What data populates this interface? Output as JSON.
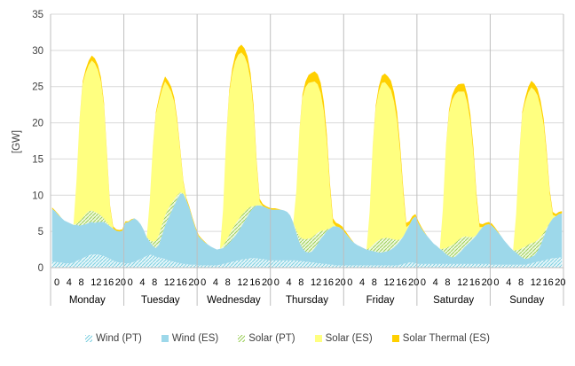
{
  "chart_data": {
    "type": "area",
    "stacked": true,
    "ylabel": "[GW]",
    "ylim": [
      0,
      35
    ],
    "yticks": [
      0,
      5,
      10,
      15,
      20,
      25,
      30,
      35
    ],
    "hour_ticks": [
      "0",
      "4",
      "8",
      "12",
      "16",
      "20"
    ],
    "hours_per_day": 24,
    "days": [
      "Monday",
      "Tuesday",
      "Wednesday",
      "Thursday",
      "Friday",
      "Saturday",
      "Sunday"
    ],
    "grid": true,
    "legend_position": "bottom",
    "series": [
      {
        "name": "Wind (PT)",
        "color": "#b5e3ec",
        "pattern": "hatch",
        "values": [
          [
            0.8,
            0.8,
            0.7,
            0.7,
            0.6,
            0.6,
            0.6,
            0.7,
            0.9,
            1.1,
            1.3,
            1.5,
            1.7,
            1.8,
            1.8,
            1.8,
            1.7,
            1.6,
            1.4,
            1.2,
            1.0,
            0.8,
            0.7,
            0.7
          ],
          [
            0.6,
            0.6,
            0.7,
            0.8,
            1.0,
            1.2,
            1.4,
            1.6,
            1.8,
            1.7,
            1.5,
            1.4,
            1.3,
            1.2,
            1.0,
            0.9,
            0.8,
            0.7,
            0.6,
            0.5,
            0.5,
            0.4,
            0.4,
            0.4
          ],
          [
            0.3,
            0.3,
            0.3,
            0.3,
            0.3,
            0.3,
            0.3,
            0.4,
            0.5,
            0.6,
            0.7,
            0.8,
            0.9,
            1.0,
            1.1,
            1.2,
            1.2,
            1.3,
            1.3,
            1.3,
            1.2,
            1.2,
            1.1,
            1.0
          ],
          [
            1.0,
            1.0,
            1.0,
            1.0,
            1.0,
            1.0,
            1.0,
            1.0,
            1.0,
            0.9,
            0.9,
            0.8,
            0.8,
            0.7,
            0.7,
            0.6,
            0.6,
            0.5,
            0.5,
            0.4,
            0.4,
            0.3,
            0.3,
            0.3
          ],
          [
            0.3,
            0.3,
            0.3,
            0.3,
            0.3,
            0.3,
            0.3,
            0.3,
            0.3,
            0.3,
            0.3,
            0.3,
            0.3,
            0.3,
            0.3,
            0.3,
            0.3,
            0.3,
            0.4,
            0.5,
            0.6,
            0.7,
            0.7,
            0.6
          ],
          [
            0.5,
            0.5,
            0.5,
            0.5,
            0.5,
            0.5,
            0.5,
            0.5,
            0.5,
            0.5,
            0.5,
            0.5,
            0.5,
            0.5,
            0.5,
            0.5,
            0.5,
            0.5,
            0.5,
            0.5,
            0.5,
            0.5,
            0.5,
            0.5
          ],
          [
            0.4,
            0.4,
            0.4,
            0.4,
            0.4,
            0.4,
            0.4,
            0.4,
            0.4,
            0.4,
            0.4,
            0.4,
            0.5,
            0.6,
            0.7,
            0.8,
            0.9,
            1.0,
            1.1,
            1.2,
            1.3,
            1.3,
            1.4,
            1.4
          ]
        ]
      },
      {
        "name": "Wind (ES)",
        "color": "#9dd8ea",
        "values": [
          [
            7.3,
            7.0,
            6.6,
            6.2,
            5.9,
            5.7,
            5.5,
            5.2,
            5.0,
            4.7,
            4.6,
            4.5,
            4.5,
            4.5,
            4.4,
            4.5,
            4.6,
            4.7,
            4.6,
            4.5,
            4.4,
            4.3,
            4.3,
            4.4
          ],
          [
            5.6,
            5.7,
            5.9,
            6.0,
            5.5,
            4.8,
            3.8,
            2.6,
            1.8,
            1.3,
            1.2,
            1.8,
            3.2,
            4.6,
            5.8,
            6.8,
            7.8,
            8.8,
            9.6,
            9.7,
            8.8,
            7.8,
            6.3,
            5.0
          ],
          [
            4.0,
            3.6,
            3.2,
            2.9,
            2.6,
            2.4,
            2.2,
            2.2,
            2.2,
            2.4,
            2.7,
            3.1,
            3.5,
            4.0,
            4.6,
            5.2,
            5.9,
            6.5,
            7.0,
            7.3,
            7.4,
            7.3,
            7.2,
            7.1
          ],
          [
            7.0,
            7.0,
            7.0,
            7.0,
            6.9,
            6.7,
            6.2,
            5.2,
            3.8,
            2.6,
            1.8,
            1.4,
            1.3,
            1.5,
            2.0,
            2.7,
            3.4,
            4.0,
            4.6,
            5.0,
            5.3,
            5.4,
            5.3,
            5.0
          ],
          [
            4.5,
            4.0,
            3.5,
            3.1,
            2.8,
            2.6,
            2.4,
            2.2,
            2.1,
            2.0,
            1.9,
            1.8,
            1.8,
            1.9,
            2.0,
            2.2,
            2.5,
            2.9,
            3.3,
            3.8,
            4.5,
            5.2,
            6.0,
            6.5
          ],
          [
            5.6,
            4.9,
            4.3,
            3.8,
            3.3,
            2.8,
            2.5,
            2.1,
            1.8,
            1.4,
            1.1,
            0.9,
            1.0,
            1.4,
            1.8,
            2.3,
            2.7,
            3.1,
            3.5,
            4.0,
            4.6,
            5.1,
            5.4,
            5.5
          ],
          [
            5.4,
            5.0,
            4.5,
            4.0,
            3.4,
            2.9,
            2.4,
            2.0,
            1.7,
            1.3,
            1.0,
            0.8,
            0.8,
            0.9,
            1.0,
            1.5,
            2.2,
            3.2,
            4.2,
            5.0,
            5.5,
            5.8,
            6.0,
            6.1
          ]
        ]
      },
      {
        "name": "Solar (PT)",
        "color": "#c6e6a4",
        "pattern": "hatch",
        "values": [
          [
            0,
            0,
            0,
            0,
            0,
            0,
            0,
            0,
            0.2,
            0.6,
            1.0,
            1.4,
            1.6,
            1.6,
            1.5,
            1.2,
            0.9,
            0.5,
            0.2,
            0,
            0,
            0,
            0,
            0
          ],
          [
            0,
            0,
            0,
            0,
            0,
            0,
            0,
            0,
            0.2,
            0.6,
            1.0,
            1.3,
            1.4,
            1.4,
            1.3,
            1.1,
            0.8,
            0.5,
            0.2,
            0,
            0,
            0,
            0,
            0
          ],
          [
            0,
            0,
            0,
            0,
            0,
            0,
            0,
            0,
            0.3,
            0.7,
            1.1,
            1.4,
            1.6,
            1.6,
            1.5,
            1.3,
            1.0,
            0.6,
            0.2,
            0,
            0,
            0,
            0,
            0
          ],
          [
            0,
            0,
            0,
            0,
            0,
            0,
            0,
            0,
            0.3,
            0.8,
            1.3,
            1.7,
            1.9,
            1.9,
            1.8,
            1.5,
            1.1,
            0.6,
            0.2,
            0,
            0,
            0,
            0,
            0
          ],
          [
            0,
            0,
            0,
            0,
            0,
            0,
            0,
            0,
            0.3,
            0.8,
            1.3,
            1.7,
            1.9,
            1.9,
            1.8,
            1.5,
            1.1,
            0.6,
            0.2,
            0,
            0,
            0,
            0,
            0
          ],
          [
            0,
            0,
            0,
            0,
            0,
            0,
            0,
            0,
            0.3,
            0.8,
            1.3,
            1.7,
            1.9,
            1.9,
            1.8,
            1.5,
            1.1,
            0.6,
            0.2,
            0,
            0,
            0,
            0,
            0
          ],
          [
            0,
            0,
            0,
            0,
            0,
            0,
            0,
            0,
            0.3,
            0.8,
            1.3,
            1.7,
            1.9,
            1.9,
            1.8,
            1.5,
            1.1,
            0.6,
            0.2,
            0,
            0,
            0,
            0,
            0
          ]
        ]
      },
      {
        "name": "Solar (ES)",
        "color": "#ffff80",
        "values": [
          [
            0,
            0,
            0,
            0,
            0,
            0,
            0,
            0,
            6.0,
            14.0,
            18.5,
            19.5,
            20.2,
            20.7,
            20.5,
            19.8,
            18.5,
            15.5,
            9.0,
            2.5,
            0,
            0,
            0,
            0
          ],
          [
            0,
            0,
            0,
            0,
            0,
            0,
            0,
            0,
            5.5,
            13.0,
            17.5,
            18.5,
            18.7,
            18.5,
            17.0,
            15.5,
            13.5,
            10.0,
            5.5,
            1.5,
            0,
            0,
            0,
            0
          ],
          [
            0,
            0,
            0,
            0,
            0,
            0,
            0,
            0,
            5.0,
            14.0,
            19.5,
            21.5,
            22.5,
            22.8,
            22.5,
            21.5,
            20.0,
            17.5,
            13.0,
            5.5,
            0.5,
            0,
            0,
            0
          ],
          [
            0,
            0,
            0,
            0,
            0,
            0,
            0,
            0,
            5.5,
            14.5,
            19.5,
            21.0,
            21.5,
            21.5,
            21.2,
            20.5,
            19.0,
            16.5,
            12.0,
            5.5,
            0.5,
            0,
            0,
            0
          ],
          [
            0,
            0,
            0,
            0,
            0,
            0,
            0,
            0,
            5.0,
            13.5,
            18.5,
            20.5,
            21.5,
            21.5,
            21.0,
            20.5,
            19.0,
            16.5,
            12.0,
            6.0,
            0.5,
            0,
            0,
            0
          ],
          [
            0,
            0,
            0,
            0,
            0,
            0,
            0,
            0,
            5.5,
            14.0,
            18.5,
            20.0,
            20.5,
            20.5,
            20.2,
            20.0,
            18.5,
            16.0,
            11.5,
            5.0,
            0.5,
            0,
            0,
            0
          ],
          [
            0,
            0,
            0,
            0,
            0,
            0,
            0,
            0,
            5.0,
            13.0,
            18.5,
            20.0,
            21.0,
            21.5,
            21.0,
            20.0,
            18.0,
            15.0,
            10.0,
            4.0,
            0.5,
            0,
            0,
            0
          ]
        ]
      },
      {
        "name": "Solar Thermal (ES)",
        "color": "#ffd000",
        "values": [
          [
            0.2,
            0.1,
            0.1,
            0,
            0,
            0,
            0,
            0,
            0,
            0.1,
            0.3,
            0.5,
            0.6,
            0.7,
            0.7,
            0.7,
            0.6,
            0.5,
            0.4,
            0.3,
            0.3,
            0.2,
            0.2,
            0.2
          ],
          [
            0.2,
            0.1,
            0.1,
            0,
            0,
            0,
            0,
            0,
            0,
            0.1,
            0.3,
            0.5,
            0.6,
            0.7,
            0.7,
            0.7,
            0.6,
            0.5,
            0.4,
            0.3,
            0.3,
            0.2,
            0.2,
            0.2
          ],
          [
            0.2,
            0.1,
            0.1,
            0,
            0,
            0,
            0,
            0,
            0,
            0.1,
            0.4,
            0.7,
            0.9,
            1.0,
            1.1,
            1.1,
            1.1,
            1.0,
            0.9,
            0.6,
            0.4,
            0.3,
            0.2,
            0.2
          ],
          [
            0.2,
            0.2,
            0.1,
            0,
            0,
            0,
            0,
            0,
            0,
            0.1,
            0.4,
            0.8,
            1.1,
            1.3,
            1.4,
            1.4,
            1.4,
            1.3,
            1.1,
            0.8,
            0.6,
            0.5,
            0.4,
            0.4
          ],
          [
            0.3,
            0.2,
            0.1,
            0,
            0,
            0,
            0,
            0,
            0,
            0.1,
            0.4,
            0.7,
            1.0,
            1.2,
            1.3,
            1.3,
            1.3,
            1.2,
            1.0,
            0.8,
            0.6,
            0.5,
            0.4,
            0.3
          ],
          [
            0.3,
            0.2,
            0.1,
            0,
            0,
            0,
            0,
            0,
            0,
            0.1,
            0.4,
            0.7,
            0.9,
            1.0,
            1.1,
            1.1,
            1.1,
            1.0,
            0.9,
            0.7,
            0.5,
            0.4,
            0.3,
            0.3
          ],
          [
            0.3,
            0.2,
            0.1,
            0,
            0,
            0,
            0,
            0,
            0,
            0.1,
            0.3,
            0.6,
            0.8,
            0.9,
            0.9,
            0.9,
            0.9,
            0.8,
            0.7,
            0.5,
            0.4,
            0.3,
            0.3,
            0.3
          ]
        ]
      }
    ]
  }
}
